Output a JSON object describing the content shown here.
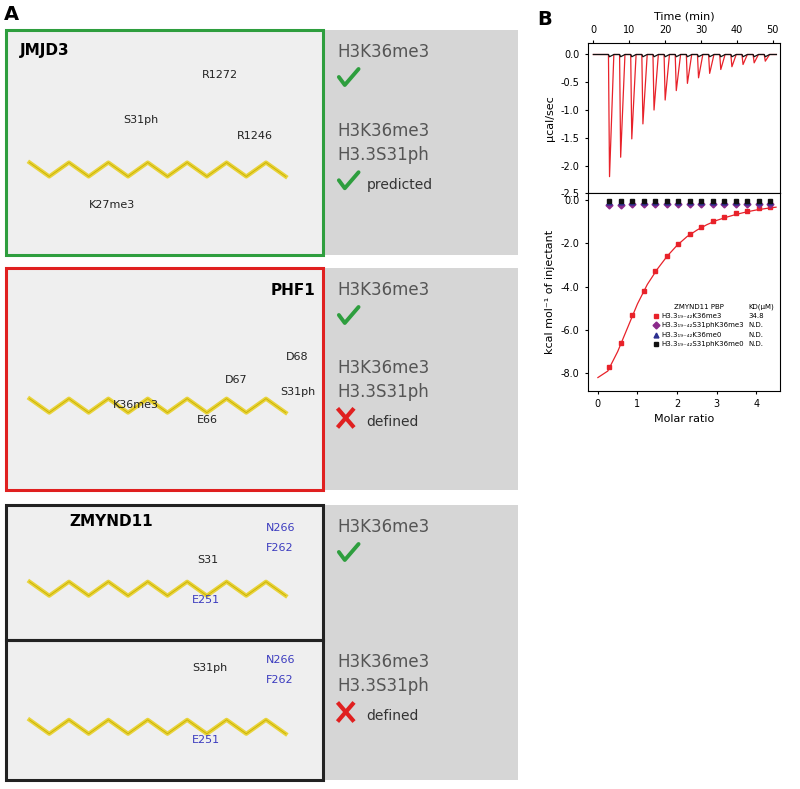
{
  "panel_a": {
    "label": "A",
    "boxes": [
      {
        "protein": "JMJD3",
        "views": [
          {
            "labels": [
              "R1272",
              "S31ph",
              "R1246",
              "K27me3"
            ],
            "results": [
              {
                "marks": [
                  "H3K36me3"
                ],
                "binds": true
              },
              {
                "marks": [
                  "H3K36me3",
                  "H3.3S31ph"
                ],
                "binds": true,
                "status": "predicted"
              }
            ]
          }
        ]
      },
      {
        "protein": "PHF1",
        "views": [
          {
            "labels": [
              "D68",
              "D67",
              "S31ph",
              "K36me3",
              "E66"
            ],
            "results": [
              {
                "marks": [
                  "H3K36me3"
                ],
                "binds": true
              },
              {
                "marks": [
                  "H3K36me3",
                  "H3.3S31ph"
                ],
                "binds": false,
                "status": "defined"
              }
            ]
          }
        ]
      },
      {
        "protein": "ZMYND11",
        "views": [
          {
            "labels": [
              "N266",
              "F262",
              "S31",
              "E251"
            ],
            "results": [
              {
                "marks": [
                  "H3K36me3"
                ],
                "binds": true
              }
            ]
          },
          {
            "labels": [
              "S31ph",
              "N266",
              "F262",
              "E251"
            ],
            "results": [
              {
                "marks": [
                  "H3K36me3",
                  "H3.3S31ph"
                ],
                "binds": false,
                "status": "defined"
              }
            ]
          }
        ]
      }
    ]
  },
  "panel_b_label": "B",
  "chart_data": [
    {
      "type": "line",
      "x_label": "Time (min)",
      "y_label": "µcal/sec",
      "xlim": [
        -1.5,
        52
      ],
      "xticks": [
        0,
        10,
        20,
        30,
        40,
        50
      ],
      "ylim": [
        -2.5,
        0.2
      ],
      "yticks": [
        -2.5,
        -2.0,
        -1.5,
        -1.0,
        -0.5,
        0.0
      ],
      "series": [
        {
          "color": "#e8222a",
          "x": [
            0,
            4.2,
            4.5,
            5.7,
            7.3,
            7.6,
            8.8,
            10.4,
            10.7,
            11.9,
            13.5,
            13.8,
            15.0,
            16.6,
            16.9,
            18.1,
            19.7,
            20.0,
            21.2,
            22.8,
            23.1,
            24.3,
            25.9,
            26.2,
            27.4,
            29.0,
            29.3,
            30.5,
            32.1,
            32.4,
            33.6,
            35.2,
            35.5,
            36.7,
            38.3,
            38.6,
            39.8,
            41.4,
            41.7,
            42.9,
            44.5,
            44.8,
            46.0,
            47.6,
            47.9,
            49.1,
            51
          ],
          "values": [
            0,
            0,
            -2.2,
            0,
            0,
            -1.85,
            0,
            0,
            -1.52,
            0,
            0,
            -1.25,
            0,
            0,
            -1.0,
            0,
            0,
            -0.82,
            0,
            0,
            -0.65,
            0,
            0,
            -0.52,
            0,
            0,
            -0.42,
            0,
            0,
            -0.34,
            0,
            0,
            -0.27,
            0,
            0,
            -0.22,
            0,
            0,
            -0.18,
            0,
            0,
            -0.15,
            0,
            0,
            -0.12,
            0,
            0
          ]
        },
        {
          "color": "#111111",
          "x": [
            0,
            4.2,
            4.5,
            5.7,
            7.3,
            7.6,
            8.8,
            10.4,
            10.7,
            11.9,
            13.5,
            13.8,
            15.0,
            16.6,
            16.9,
            18.1,
            19.7,
            20.0,
            21.2,
            22.8,
            23.1,
            24.3,
            25.9,
            26.2,
            27.4,
            29.0,
            29.3,
            30.5,
            32.1,
            32.4,
            33.6,
            35.2,
            35.5,
            36.7,
            38.3,
            38.6,
            39.8,
            41.4,
            41.7,
            42.9,
            44.5,
            44.8,
            46.0,
            47.6,
            47.9,
            49.1,
            51
          ],
          "values": [
            0,
            0,
            -0.04,
            0,
            0,
            -0.04,
            0,
            0,
            -0.04,
            0,
            0,
            -0.04,
            0,
            0,
            -0.04,
            0,
            0,
            -0.04,
            0,
            0,
            -0.04,
            0,
            0,
            -0.04,
            0,
            0,
            -0.04,
            0,
            0,
            -0.04,
            0,
            0,
            -0.04,
            0,
            0,
            -0.04,
            0,
            0,
            -0.04,
            0,
            0,
            -0.04,
            0,
            0,
            -0.04,
            0,
            0
          ]
        }
      ]
    },
    {
      "type": "scatter",
      "x_label": "Molar ratio",
      "y_label": "kcal mol⁻¹ of injectant",
      "xlim": [
        -0.25,
        4.6
      ],
      "xticks": [
        0,
        1,
        2,
        3,
        4
      ],
      "ylim": [
        -8.8,
        0.3
      ],
      "yticks": [
        -8.0,
        -6.0,
        -4.0,
        -2.0,
        0.0
      ],
      "legend": "center right",
      "legend_title": "ZMYND11 PBP",
      "kd_header": "KD(µM)",
      "series": [
        {
          "type": "line",
          "color": "#e8222a",
          "line_style": "solid",
          "x": [
            0.0,
            0.25,
            0.5,
            0.75,
            1.0,
            1.25,
            1.5,
            1.75,
            2.0,
            2.25,
            2.5,
            2.75,
            3.0,
            3.25,
            3.5,
            3.75,
            4.0,
            4.25,
            4.5
          ],
          "values": [
            -8.2,
            -7.9,
            -7.0,
            -5.9,
            -4.8,
            -3.9,
            -3.2,
            -2.6,
            -2.1,
            -1.7,
            -1.4,
            -1.15,
            -0.95,
            -0.8,
            -0.67,
            -0.56,
            -0.47,
            -0.4,
            -0.34
          ]
        },
        {
          "name": "H3.3₁₉₋₄₂K36me3",
          "kd": 34.8,
          "color": "#e8222a",
          "marker": "square",
          "x": [
            0.29,
            0.58,
            0.87,
            1.16,
            1.45,
            1.74,
            2.03,
            2.32,
            2.61,
            2.9,
            3.19,
            3.48,
            3.77,
            4.06,
            4.35
          ],
          "values": [
            -7.7,
            -6.6,
            -5.3,
            -4.2,
            -3.3,
            -2.6,
            -2.05,
            -1.6,
            -1.25,
            -0.98,
            -0.78,
            -0.62,
            -0.5,
            -0.4,
            -0.33
          ]
        },
        {
          "name": "H3.3₁₉₋₄₂S31phK36me3",
          "kd": "N.D.",
          "color": "#8b2a8b",
          "marker": "diamond",
          "x": [
            0.29,
            0.58,
            0.87,
            1.16,
            1.45,
            1.74,
            2.03,
            2.32,
            2.61,
            2.9,
            3.19,
            3.48,
            3.77,
            4.06,
            4.35
          ],
          "values": [
            -0.22,
            -0.22,
            -0.21,
            -0.21,
            -0.2,
            -0.2,
            -0.2,
            -0.2,
            -0.2,
            -0.2,
            -0.2,
            -0.2,
            -0.2,
            -0.2,
            -0.2
          ]
        },
        {
          "name": "H3.3₁₉₋₄₂K36me0",
          "kd": "N.D.",
          "color": "#2b2f8f",
          "marker": "triangle",
          "x": [
            0.29,
            0.58,
            0.87,
            1.16,
            1.45,
            1.74,
            2.03,
            2.32,
            2.61,
            2.9,
            3.19,
            3.48,
            3.77,
            4.06,
            4.35
          ],
          "values": [
            -0.1,
            -0.1,
            -0.1,
            -0.1,
            -0.1,
            -0.1,
            -0.1,
            -0.1,
            -0.1,
            -0.1,
            -0.1,
            -0.1,
            -0.1,
            -0.1,
            -0.1
          ]
        },
        {
          "name": "H3.3₁₉₋₄₂S31phK36me0",
          "kd": "N.D.",
          "color": "#111111",
          "marker": "square",
          "x": [
            0.29,
            0.58,
            0.87,
            1.16,
            1.45,
            1.74,
            2.03,
            2.32,
            2.61,
            2.9,
            3.19,
            3.48,
            3.77,
            4.06,
            4.35
          ],
          "values": [
            -0.04,
            -0.04,
            -0.04,
            -0.04,
            -0.04,
            -0.04,
            -0.04,
            -0.04,
            -0.04,
            -0.04,
            -0.04,
            -0.04,
            -0.04,
            -0.04,
            -0.04
          ]
        }
      ]
    }
  ]
}
